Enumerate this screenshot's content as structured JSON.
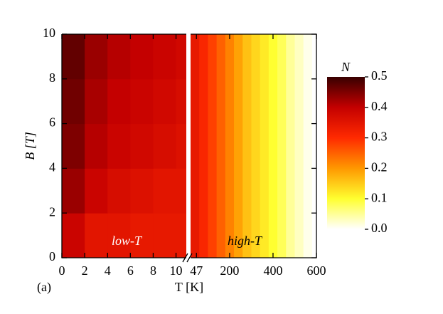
{
  "chart_data": {
    "type": "heatmap",
    "x_label": "T [K]",
    "y_label": "B [T]",
    "panel_label": "(a)",
    "ylim": [
      0,
      10
    ],
    "yticks": [
      0,
      2,
      4,
      6,
      8,
      10
    ],
    "colormap": [
      "#ffffff",
      "#ffff30",
      "#ff9800",
      "#ff2a00",
      "#c40000",
      "#380000"
    ],
    "colorbar": {
      "label": "N",
      "clim": [
        0,
        0.5
      ],
      "ticks": [
        {
          "value": 0,
          "label": "0.0"
        },
        0.1,
        0.2,
        0.3,
        0.4,
        0.5
      ]
    },
    "panels": [
      {
        "annotation": "low-T",
        "xlim": [
          0,
          10.9
        ],
        "xticks": [
          0,
          2,
          4,
          6,
          8,
          10
        ],
        "x": [
          1,
          3,
          5,
          7,
          9,
          11
        ],
        "y": [
          1,
          3,
          5,
          7,
          9
        ],
        "z": [
          [
            0.39,
            0.35,
            0.35,
            0.34,
            0.34,
            0.34
          ],
          [
            0.43,
            0.39,
            0.37,
            0.36,
            0.35,
            0.35
          ],
          [
            0.45,
            0.41,
            0.39,
            0.38,
            0.37,
            0.36
          ],
          [
            0.46,
            0.42,
            0.4,
            0.39,
            0.38,
            0.37
          ],
          [
            0.47,
            0.43,
            0.41,
            0.4,
            0.39,
            0.38
          ]
        ]
      },
      {
        "annotation": "high-T",
        "xlim": [
          20,
          600
        ],
        "xticks": [
          47,
          200,
          400,
          600
        ],
        "x": [
          40,
          80,
          120,
          160,
          200,
          240,
          280,
          320,
          360,
          400,
          440,
          480,
          520,
          560,
          600
        ],
        "values": [
          0.34,
          0.31,
          0.28,
          0.25,
          0.22,
          0.19,
          0.16,
          0.14,
          0.12,
          0.1,
          0.08,
          0.05,
          0.03,
          0.01,
          0
        ]
      }
    ]
  }
}
